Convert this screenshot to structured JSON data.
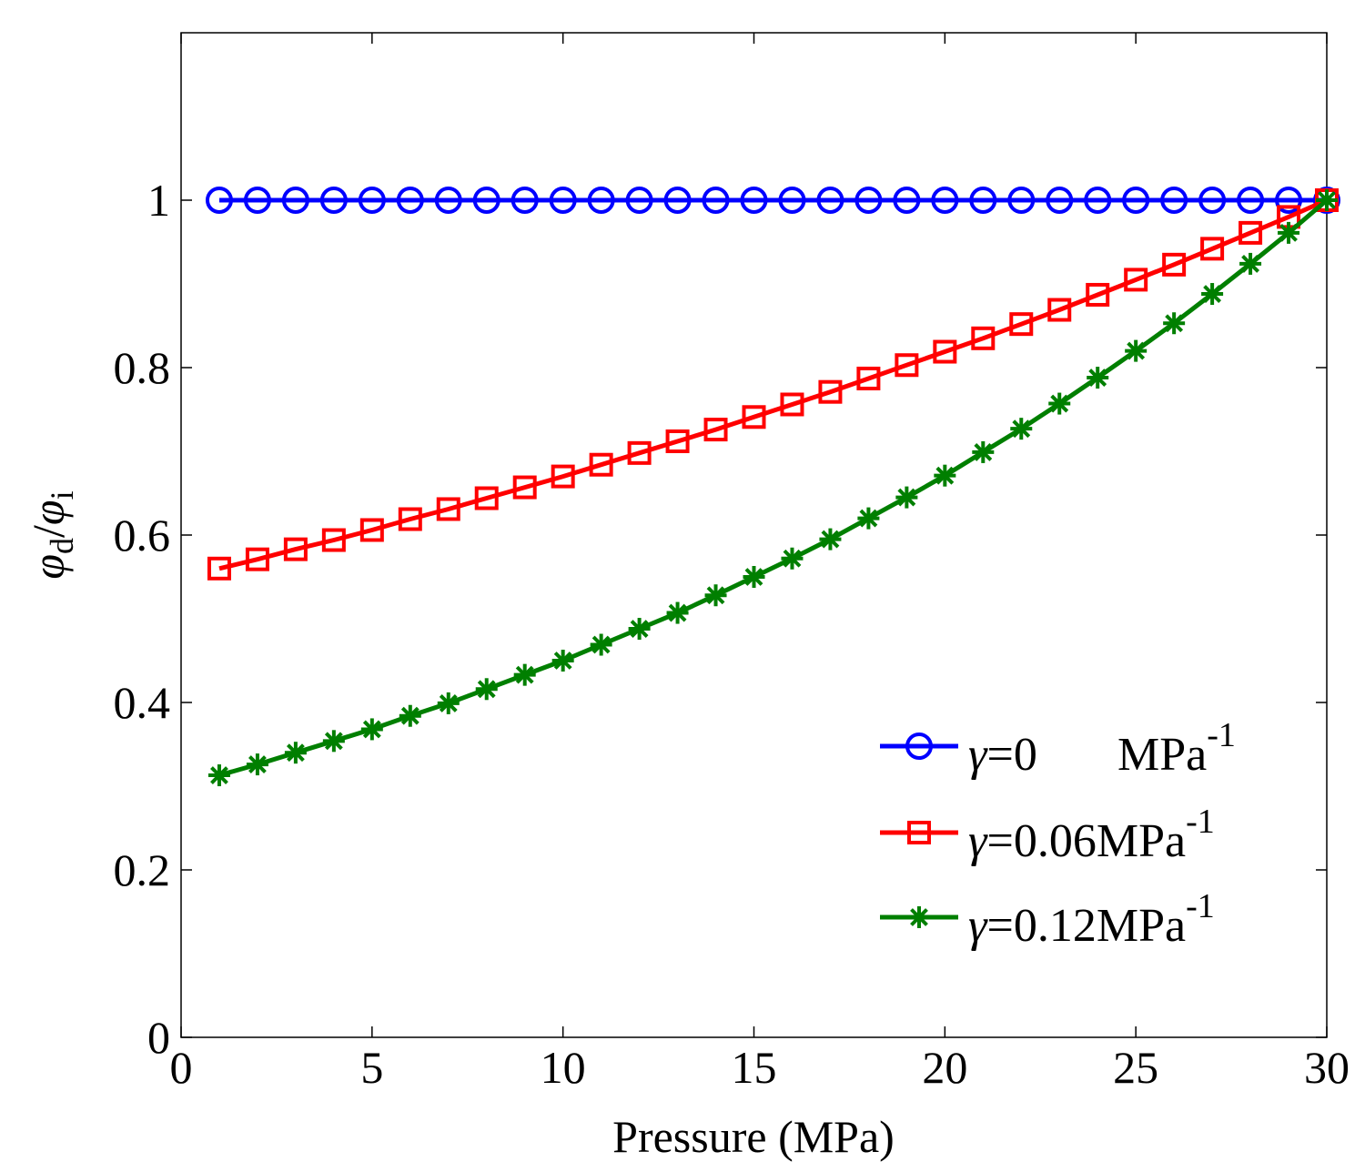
{
  "chart_data": {
    "type": "line",
    "title": "",
    "xlabel": "Pressure (MPa)",
    "ylabel": {
      "main": "φ",
      "sub1": "d",
      "slash": "/",
      "main2": "φ",
      "sub2": "i"
    },
    "xlim": [
      0,
      30
    ],
    "ylim": [
      0,
      1.2
    ],
    "xticks": [
      0,
      5,
      10,
      15,
      20,
      25,
      30
    ],
    "yticks": [
      0,
      0.2,
      0.4,
      0.6,
      0.8,
      1
    ],
    "xtick_labels": [
      "0",
      "5",
      "10",
      "15",
      "20",
      "25",
      "30"
    ],
    "ytick_labels": [
      "0",
      "0.2",
      "0.4",
      "0.6",
      "0.8",
      "1"
    ],
    "grid": false,
    "legend_position": "lower-right",
    "x": [
      1,
      2,
      3,
      4,
      5,
      6,
      7,
      8,
      9,
      10,
      11,
      12,
      13,
      14,
      15,
      16,
      17,
      18,
      19,
      20,
      21,
      22,
      23,
      24,
      25,
      26,
      27,
      28,
      29,
      30
    ],
    "series": [
      {
        "symbol": "γ",
        "value": "=0",
        "unit": "MPa",
        "exp": "-1",
        "color": "#0000ff",
        "marker": "circle",
        "values": [
          1,
          1,
          1,
          1,
          1,
          1,
          1,
          1,
          1,
          1,
          1,
          1,
          1,
          1,
          1,
          1,
          1,
          1,
          1,
          1,
          1,
          1,
          1,
          1,
          1,
          1,
          1,
          1,
          1,
          1
        ]
      },
      {
        "symbol": "γ",
        "value": "=0.06",
        "unit": "MPa",
        "exp": "-1",
        "color": "#ff0000",
        "marker": "square",
        "values": [
          0.56,
          0.571,
          0.583,
          0.594,
          0.606,
          0.619,
          0.631,
          0.644,
          0.657,
          0.67,
          0.684,
          0.698,
          0.712,
          0.726,
          0.741,
          0.756,
          0.771,
          0.787,
          0.803,
          0.819,
          0.835,
          0.852,
          0.869,
          0.887,
          0.905,
          0.923,
          0.942,
          0.961,
          0.98,
          1.0
        ]
      },
      {
        "symbol": "γ",
        "value": "=0.12",
        "unit": "MPa",
        "exp": "-1",
        "color": "#007f00",
        "marker": "asterisk",
        "values": [
          0.313,
          0.326,
          0.34,
          0.354,
          0.368,
          0.384,
          0.399,
          0.416,
          0.433,
          0.45,
          0.469,
          0.488,
          0.507,
          0.528,
          0.55,
          0.572,
          0.595,
          0.62,
          0.645,
          0.671,
          0.699,
          0.727,
          0.757,
          0.788,
          0.82,
          0.853,
          0.888,
          0.924,
          0.961,
          1.0
        ]
      }
    ]
  }
}
